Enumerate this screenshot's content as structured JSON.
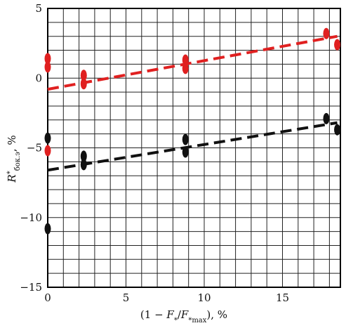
{
  "chart_data": {
    "type": "scatter",
    "title": "",
    "xlabel": "(1 − F*/F*max), %",
    "ylabel": "R*бок.э, %",
    "xlim": [
      0,
      18.7
    ],
    "ylim": [
      -15,
      5
    ],
    "x_ticks": [
      "0",
      "5",
      "10",
      "15"
    ],
    "y_ticks": [
      "5",
      "0",
      "−5",
      "−10",
      "−15"
    ],
    "grid": true,
    "series": [
      {
        "color": "#e02020",
        "points": [
          {
            "x": 0,
            "y": 1.4
          },
          {
            "x": 0,
            "y": 0.8
          },
          {
            "x": 0,
            "y": -5.2
          },
          {
            "x": 2.3,
            "y": 0.2
          },
          {
            "x": 2.3,
            "y": -0.4
          },
          {
            "x": 8.8,
            "y": 1.3
          },
          {
            "x": 8.8,
            "y": 0.7
          },
          {
            "x": 17.8,
            "y": 3.2
          },
          {
            "x": 18.5,
            "y": 2.4
          }
        ],
        "trend": {
          "x": [
            0,
            18.5
          ],
          "y": [
            -0.8,
            3.0
          ]
        }
      },
      {
        "color": "#111111",
        "points": [
          {
            "x": 0,
            "y": -4.3
          },
          {
            "x": 0,
            "y": -10.8
          },
          {
            "x": 2.3,
            "y": -5.6
          },
          {
            "x": 2.3,
            "y": -6.2
          },
          {
            "x": 8.8,
            "y": -4.4
          },
          {
            "x": 8.8,
            "y": -5.3
          },
          {
            "x": 17.8,
            "y": -2.9
          },
          {
            "x": 18.5,
            "y": -3.7
          }
        ],
        "trend": {
          "x": [
            0,
            18.5
          ],
          "y": [
            -6.6,
            -3.2
          ]
        }
      }
    ]
  }
}
